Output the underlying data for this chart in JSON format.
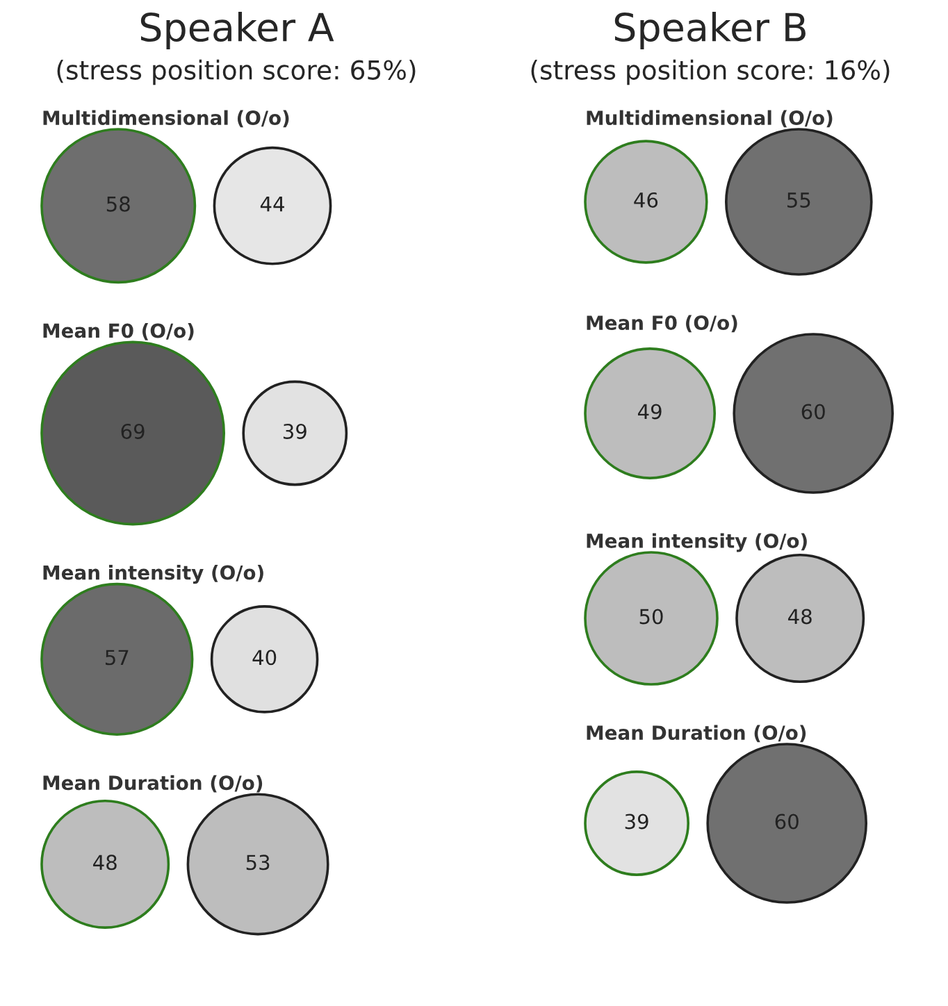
{
  "chart_data": [
    {
      "type": "other",
      "title": "Speaker A",
      "subtitle": "(stress position score: 65%)",
      "categories": [
        "Multidimensional (O/o)",
        "Mean F0 (O/o)",
        "Mean intensity (O/o)",
        "Mean Duration (O/o)"
      ],
      "data_labels": true,
      "series": [
        {
          "values": [
            58,
            69,
            57,
            48
          ],
          "colors": [
            "#6e6e6e",
            "#5a5a5a",
            "#6b6b6b",
            "#bdbdbd"
          ]
        },
        {
          "values": [
            44,
            39,
            40,
            53
          ],
          "colors": [
            "#e6e6e6",
            "#e2e2e2",
            "#e0e0e0",
            "#bdbdbd"
          ]
        }
      ]
    },
    {
      "type": "other",
      "title": "Speaker B",
      "subtitle": "(stress position score: 16%)",
      "categories": [
        "Multidimensional (O/o)",
        "Mean F0 (O/o)",
        "Mean intensity (O/o)",
        "Mean Duration (O/o)"
      ],
      "data_labels": true,
      "series": [
        {
          "values": [
            46,
            49,
            50,
            39
          ],
          "colors": [
            "#bdbdbd",
            "#bdbdbd",
            "#bdbdbd",
            "#e2e2e2"
          ]
        },
        {
          "values": [
            55,
            60,
            48,
            60
          ],
          "colors": [
            "#707070",
            "#707070",
            "#bdbdbd",
            "#707070"
          ]
        }
      ]
    }
  ]
}
